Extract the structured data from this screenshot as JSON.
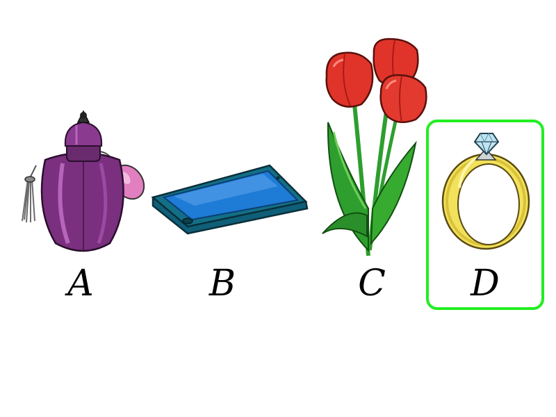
{
  "options": [
    {
      "letter": "A",
      "icon": "perfume-bottle-icon"
    },
    {
      "letter": "B",
      "icon": "tablet-device-icon"
    },
    {
      "letter": "C",
      "icon": "red-tulips-icon"
    },
    {
      "letter": "D",
      "icon": "diamond-ring-icon"
    }
  ],
  "selected": "D",
  "colors": {
    "selection_border": "#22ee22",
    "perfume": "#7a2f7f",
    "tablet": "#1e7bd6",
    "tulip": "#e0342a",
    "leaf": "#2e9e2e",
    "ring_band": "#f2e15a",
    "gem": "#bfe3f0"
  }
}
